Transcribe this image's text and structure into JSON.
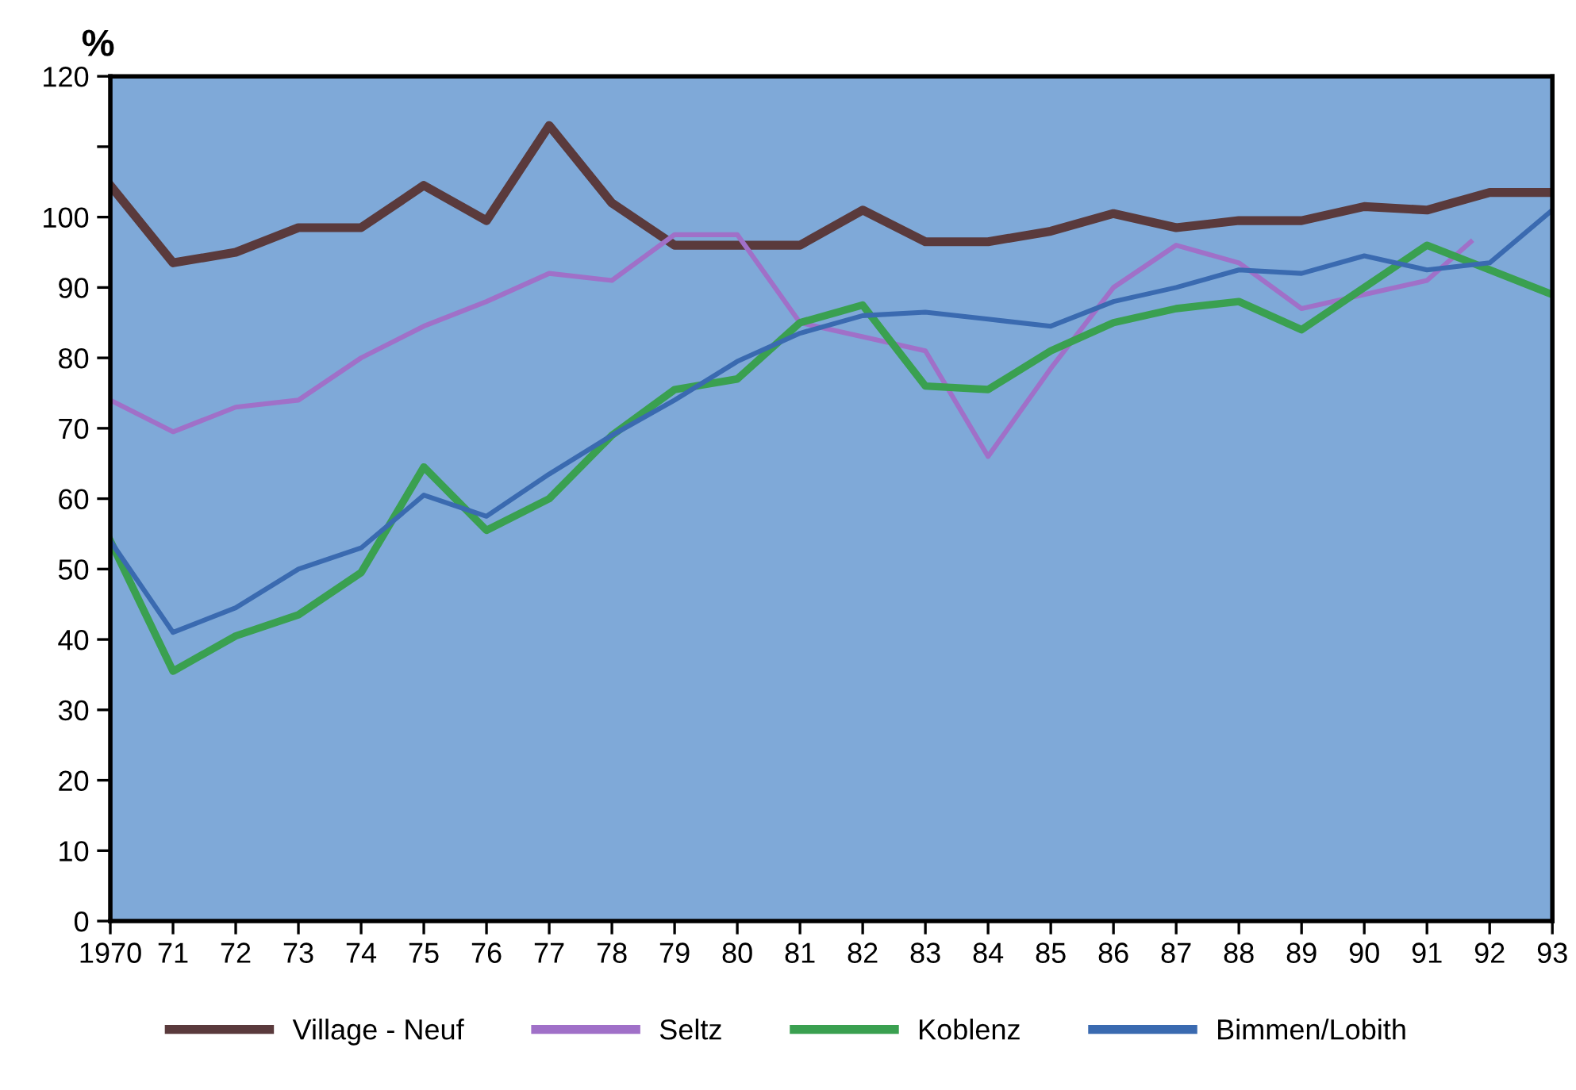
{
  "chart_data": {
    "type": "line",
    "ylabel": "%",
    "x": [
      1970,
      1971,
      1972,
      1973,
      1974,
      1975,
      1976,
      1977,
      1978,
      1979,
      1980,
      1981,
      1982,
      1983,
      1984,
      1985,
      1986,
      1987,
      1988,
      1989,
      1990,
      1991,
      1992,
      1993
    ],
    "series": [
      {
        "name": "Village - Neuf",
        "color": "#5a3a3c",
        "values": [
          104.5,
          93.5,
          95,
          98.5,
          98.5,
          104.5,
          99.5,
          113,
          102,
          96,
          96,
          96,
          101,
          96.5,
          96.5,
          98,
          100.5,
          98.5,
          99.5,
          99.5,
          101.5,
          101,
          103.5,
          103.5
        ]
      },
      {
        "name": "Seltz",
        "color": "#a070c8",
        "x": [
          1970,
          1971,
          1972,
          1973,
          1974,
          1975,
          1976,
          1977,
          1978,
          1979,
          1980,
          1981,
          1982,
          1983,
          1984,
          1985,
          1986,
          1987,
          1988,
          1989,
          1990,
          1991,
          1991.7
        ],
        "values": [
          74,
          69.5,
          73,
          74,
          80,
          84.5,
          88,
          92,
          91,
          97.5,
          97.5,
          85,
          83,
          81,
          66,
          78.5,
          90,
          96,
          93.5,
          87,
          89,
          91,
          96.5
        ]
      },
      {
        "name": "Koblenz",
        "color": "#3aa050",
        "values": [
          54,
          35.5,
          40.5,
          43.5,
          49.5,
          64.5,
          55.5,
          60,
          69,
          75.5,
          77,
          85,
          87.5,
          76,
          75.5,
          81,
          85,
          87,
          88,
          84,
          90,
          96,
          92.5,
          89
        ]
      },
      {
        "name": "Bimmen/Lobith",
        "color": "#3a6ab0",
        "values": [
          54,
          41,
          44.5,
          50,
          53,
          60.5,
          57.5,
          63.5,
          69,
          74,
          79.5,
          83.5,
          86,
          86.5,
          85.5,
          84.5,
          88,
          90,
          92.5,
          92,
          94.5,
          92.5,
          93.5,
          101
        ]
      }
    ],
    "xlim": [
      1970,
      1993
    ],
    "xticks": [
      1970,
      {
        "value": 1971,
        "label": "71"
      },
      {
        "value": 1972,
        "label": "72"
      },
      {
        "value": 1973,
        "label": "73"
      },
      {
        "value": 1974,
        "label": "74"
      },
      {
        "value": 1975,
        "label": "75"
      },
      {
        "value": 1976,
        "label": "76"
      },
      {
        "value": 1977,
        "label": "77"
      },
      {
        "value": 1978,
        "label": "78"
      },
      {
        "value": 1979,
        "label": "79"
      },
      {
        "value": 1980,
        "label": "80"
      },
      {
        "value": 1981,
        "label": "81"
      },
      {
        "value": 1982,
        "label": "82"
      },
      {
        "value": 1983,
        "label": "83"
      },
      {
        "value": 1984,
        "label": "84"
      },
      {
        "value": 1985,
        "label": "85"
      },
      {
        "value": 1986,
        "label": "86"
      },
      {
        "value": 1987,
        "label": "87"
      },
      {
        "value": 1988,
        "label": "88"
      },
      {
        "value": 1989,
        "label": "89"
      },
      {
        "value": 1990,
        "label": "90"
      },
      {
        "value": 1991,
        "label": "91"
      },
      {
        "value": 1992,
        "label": "92"
      },
      {
        "value": 1993,
        "label": "93"
      }
    ],
    "ylim": [
      0,
      120
    ],
    "yticks": [
      0,
      10,
      20,
      30,
      40,
      50,
      60,
      70,
      80,
      90,
      100,
      {
        "value": 110,
        "label": null
      },
      120
    ],
    "grid": false,
    "legend": "bottom",
    "marker": "none",
    "line_style": "solid"
  }
}
